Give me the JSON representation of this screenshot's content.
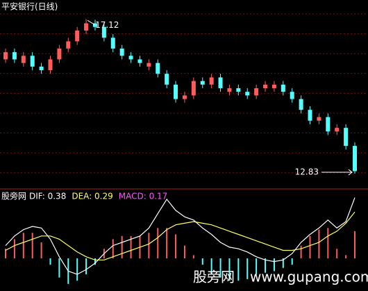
{
  "chart_data": {
    "type": "candlestick",
    "title": "平安银行(日线)",
    "high_label": "17.12",
    "low_label": "12.83",
    "up_color": "#ff5c5c",
    "down_color": "#54ffff",
    "grid": true,
    "ylim": [
      12.6,
      17.3
    ],
    "open": [
      16.0,
      16.2,
      15.9,
      16.1,
      15.8,
      15.7,
      16.0,
      16.3,
      16.5,
      16.8,
      17.0,
      16.9,
      16.6,
      16.3,
      16.1,
      16.0,
      15.8,
      15.9,
      15.6,
      15.3,
      14.9,
      15.0,
      15.4,
      15.3,
      15.5,
      15.1,
      15.2,
      15.1,
      15.0,
      15.2,
      15.2,
      15.3,
      15.1,
      14.9,
      14.6,
      14.3,
      14.4,
      14.0,
      14.1,
      13.6
    ],
    "close": [
      16.2,
      16.0,
      16.1,
      15.8,
      15.7,
      16.0,
      16.3,
      16.5,
      16.8,
      17.0,
      16.9,
      16.6,
      16.3,
      16.1,
      16.0,
      15.9,
      15.9,
      15.6,
      15.3,
      14.9,
      15.0,
      15.4,
      15.3,
      15.5,
      15.2,
      15.2,
      15.1,
      15.0,
      15.2,
      15.3,
      15.3,
      15.1,
      14.9,
      14.6,
      14.3,
      14.4,
      14.0,
      14.1,
      13.6,
      12.9
    ],
    "high": [
      16.3,
      16.3,
      16.2,
      16.2,
      15.9,
      16.1,
      16.4,
      16.6,
      16.9,
      17.12,
      17.1,
      17.0,
      16.7,
      16.4,
      16.2,
      16.1,
      16.0,
      16.0,
      15.7,
      15.4,
      15.1,
      15.5,
      15.5,
      15.6,
      15.6,
      15.3,
      15.3,
      15.2,
      15.3,
      15.4,
      15.4,
      15.4,
      15.2,
      15.0,
      14.7,
      14.5,
      14.5,
      14.2,
      14.2,
      13.7
    ],
    "low": [
      15.9,
      15.9,
      15.8,
      15.7,
      15.6,
      15.6,
      15.9,
      16.2,
      16.4,
      16.7,
      16.8,
      16.5,
      16.2,
      16.0,
      15.9,
      15.8,
      15.7,
      15.5,
      15.2,
      14.8,
      14.8,
      14.9,
      15.2,
      15.2,
      15.1,
      15.0,
      15.0,
      14.9,
      14.9,
      15.1,
      15.1,
      15.0,
      14.8,
      14.5,
      14.2,
      14.2,
      13.9,
      13.9,
      13.5,
      12.83
    ],
    "indicator": {
      "source": "股旁网",
      "labels": [
        {
          "text": "DIF: 0.38",
          "color": "#ffffff"
        },
        {
          "text": "DEA: 0.29",
          "color": "#ffff66"
        },
        {
          "text": "MACD: 0.17",
          "color": "#ff55ff"
        }
      ],
      "ylim": [
        -0.2,
        0.4
      ],
      "dif": [
        0.08,
        0.14,
        0.18,
        0.2,
        0.19,
        0.12,
        0.01,
        -0.08,
        -0.1,
        -0.07,
        -0.03,
        0.03,
        0.08,
        0.1,
        0.12,
        0.14,
        0.19,
        0.28,
        0.37,
        0.3,
        0.26,
        0.24,
        0.19,
        0.15,
        0.1,
        0.07,
        0.06,
        0.04,
        0.01,
        -0.01,
        -0.02,
        -0.01,
        0.03,
        0.1,
        0.15,
        0.19,
        0.24,
        0.19,
        0.23,
        0.38
      ],
      "dea": [
        0.05,
        0.08,
        0.1,
        0.12,
        0.14,
        0.14,
        0.12,
        0.08,
        0.04,
        0.01,
        -0.01,
        -0.01,
        0.01,
        0.03,
        0.05,
        0.07,
        0.09,
        0.13,
        0.18,
        0.21,
        0.22,
        0.23,
        0.22,
        0.21,
        0.19,
        0.17,
        0.15,
        0.13,
        0.11,
        0.09,
        0.07,
        0.05,
        0.05,
        0.06,
        0.08,
        0.1,
        0.14,
        0.17,
        0.22,
        0.29
      ],
      "macd": [
        0.06,
        0.12,
        0.16,
        0.16,
        0.1,
        -0.04,
        -0.12,
        -0.16,
        -0.14,
        -0.1,
        -0.04,
        0.06,
        0.12,
        0.14,
        0.14,
        0.14,
        0.16,
        0.19,
        0.19,
        0.15,
        0.08,
        0.02,
        -0.04,
        -0.1,
        -0.12,
        -0.14,
        -0.14,
        -0.13,
        -0.1,
        -0.09,
        -0.08,
        -0.06,
        -0.04,
        0.08,
        0.14,
        0.18,
        0.19,
        0.06,
        0.02,
        0.17
      ]
    },
    "watermark": {
      "name": "股旁网",
      "url": "www.gupang.com"
    }
  }
}
